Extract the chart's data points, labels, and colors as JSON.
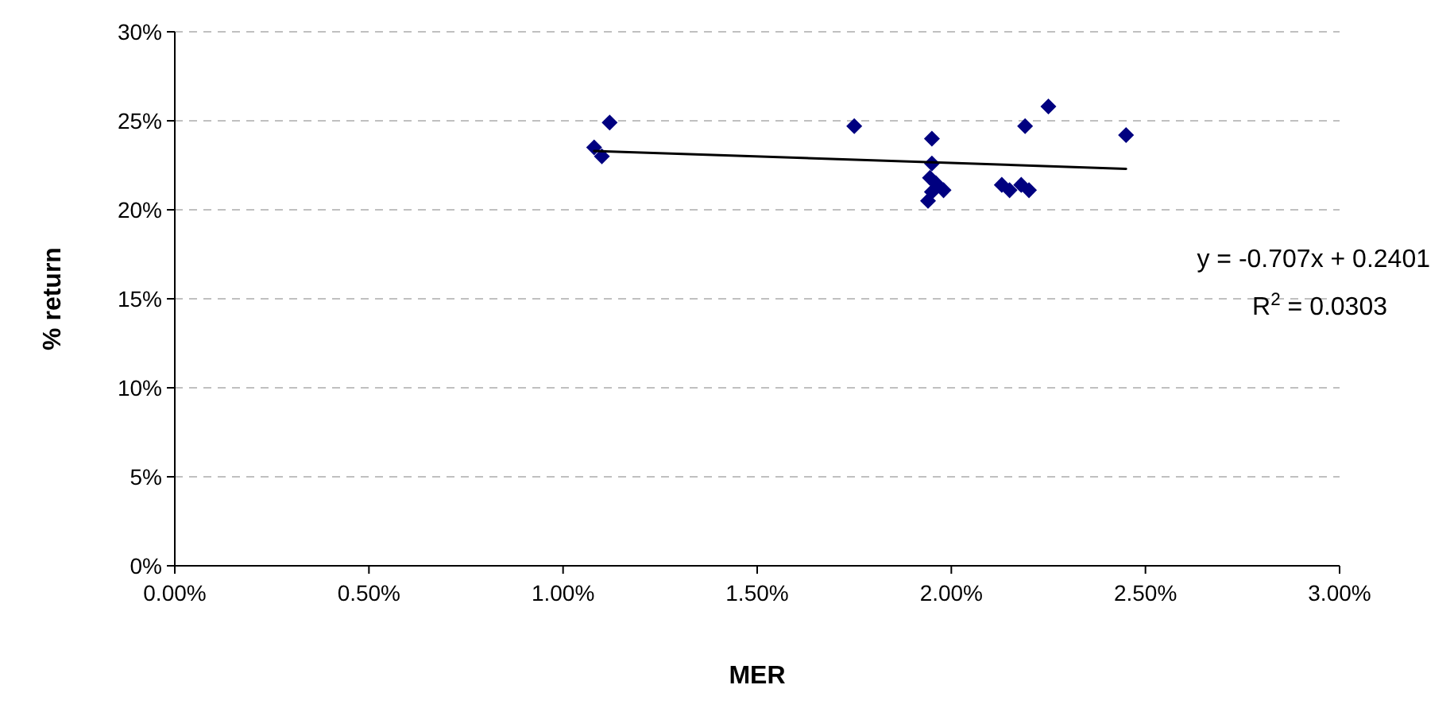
{
  "chart_data": {
    "type": "scatter",
    "xlabel": "MER",
    "ylabel": "% return",
    "xlim": [
      0,
      3
    ],
    "ylim": [
      0,
      30
    ],
    "xticks": [
      {
        "value": 0,
        "label": "0.00%"
      },
      {
        "value": 0.5,
        "label": "0.50%"
      },
      {
        "value": 1,
        "label": "1.00%"
      },
      {
        "value": 1.5,
        "label": "1.50%"
      },
      {
        "value": 2,
        "label": "2.00%"
      },
      {
        "value": 2.5,
        "label": "2.50%"
      },
      {
        "value": 3,
        "label": "3.00%"
      }
    ],
    "yticks": [
      {
        "value": 0,
        "label": "0%"
      },
      {
        "value": 5,
        "label": "5%"
      },
      {
        "value": 10,
        "label": "10%"
      },
      {
        "value": 15,
        "label": "15%"
      },
      {
        "value": 20,
        "label": "20%"
      },
      {
        "value": 25,
        "label": "25%"
      },
      {
        "value": 30,
        "label": "30%"
      }
    ],
    "grid": "y",
    "marker": "diamond",
    "series": [
      {
        "color": "#000080",
        "x": [
          1.08,
          1.1,
          1.12,
          1.75,
          1.95,
          1.95,
          1.945,
          1.94,
          1.95,
          1.96,
          1.98,
          2.13,
          2.15,
          2.18,
          2.2,
          2.19,
          2.25,
          2.45
        ],
        "values": [
          23.5,
          23.0,
          24.9,
          24.7,
          24.0,
          22.6,
          21.8,
          20.5,
          21.0,
          21.5,
          21.1,
          21.4,
          21.1,
          21.4,
          21.1,
          24.7,
          25.8,
          24.2
        ]
      },
      {
        "type": "line",
        "color": "#000000",
        "marker": "none",
        "line_style": "solid",
        "x": [
          1.08,
          2.45
        ],
        "values": [
          23.3,
          22.3
        ]
      }
    ],
    "annotations": [
      "y = -0.707x + 0.2401",
      "R$^{2}$ = 0.0303"
    ]
  }
}
